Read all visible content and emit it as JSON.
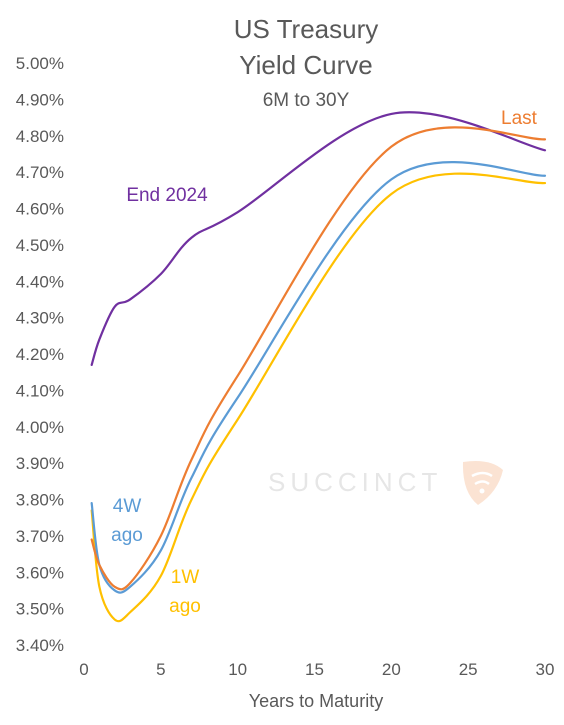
{
  "chart_data": {
    "type": "line",
    "title": [
      "US Treasury",
      "Yield Curve"
    ],
    "subtitle": "6M to 30Y",
    "xlabel": "Years to Maturity",
    "ylabel": "",
    "xlim": [
      0,
      30
    ],
    "ylim": [
      3.4,
      5.0
    ],
    "x_ticks": [
      "0",
      "5",
      "10",
      "15",
      "20",
      "25",
      "30"
    ],
    "y_ticks": [
      "3.40%",
      "3.50%",
      "3.60%",
      "3.70%",
      "3.80%",
      "3.90%",
      "4.00%",
      "4.10%",
      "4.20%",
      "4.30%",
      "4.40%",
      "4.50%",
      "4.60%",
      "4.70%",
      "4.80%",
      "4.90%",
      "5.00%"
    ],
    "grid": false,
    "legend": "inline labels",
    "series": [
      {
        "name": "End 2024",
        "label_lines": [
          "End 2024"
        ],
        "color": "#7030A0",
        "x": [
          0.5,
          1,
          2,
          3,
          5,
          7,
          10,
          20,
          30
        ],
        "y": [
          4.17,
          4.24,
          4.33,
          4.35,
          4.42,
          4.52,
          4.59,
          4.86,
          4.76
        ]
      },
      {
        "name": "Last",
        "label_lines": [
          "Last"
        ],
        "color": "#ED7D31",
        "x": [
          0.5,
          1,
          2,
          3,
          5,
          7,
          10,
          20,
          30
        ],
        "y": [
          3.69,
          3.62,
          3.56,
          3.57,
          3.7,
          3.91,
          4.14,
          4.77,
          4.79
        ]
      },
      {
        "name": "4W ago",
        "label_lines": [
          "4W",
          "ago"
        ],
        "color": "#5B9BD5",
        "x": [
          0.5,
          1,
          2,
          3,
          5,
          7,
          10,
          20,
          30
        ],
        "y": [
          3.79,
          3.62,
          3.55,
          3.56,
          3.66,
          3.86,
          4.08,
          4.68,
          4.69
        ]
      },
      {
        "name": "1W ago",
        "label_lines": [
          "1W",
          "ago"
        ],
        "color": "#FFC000",
        "x": [
          0.5,
          1,
          2,
          3,
          5,
          7,
          10,
          20,
          30
        ],
        "y": [
          3.77,
          3.56,
          3.47,
          3.49,
          3.59,
          3.8,
          4.02,
          4.64,
          4.67
        ]
      }
    ]
  },
  "watermark": {
    "text": "SUCCINCT",
    "icon": "succinct-logo-icon"
  }
}
